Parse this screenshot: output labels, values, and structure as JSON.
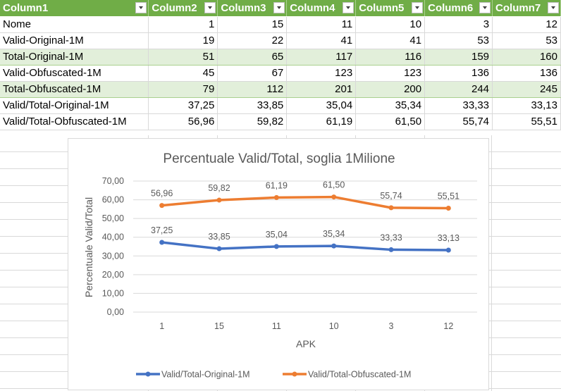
{
  "table": {
    "headers": [
      "Column1",
      "Column2",
      "Column3",
      "Column4",
      "Column5",
      "Column6",
      "Column7"
    ],
    "rows": [
      [
        "Nome",
        "1",
        "15",
        "11",
        "10",
        "3",
        "12"
      ],
      [
        "Valid-Original-1M",
        "19",
        "22",
        "41",
        "41",
        "53",
        "53"
      ],
      [
        "Total-Original-1M",
        "51",
        "65",
        "117",
        "116",
        "159",
        "160"
      ],
      [
        "Valid-Obfuscated-1M",
        "45",
        "67",
        "123",
        "123",
        "136",
        "136"
      ],
      [
        "Total-Obfuscated-1M",
        "79",
        "112",
        "201",
        "200",
        "244",
        "245"
      ],
      [
        "Valid/Total-Original-1M",
        "37,25",
        "33,85",
        "35,04",
        "35,34",
        "33,33",
        "33,13"
      ],
      [
        "Valid/Total-Obfuscated-1M",
        "56,96",
        "59,82",
        "61,19",
        "61,50",
        "55,74",
        "55,51"
      ]
    ]
  },
  "chart_data": {
    "type": "line",
    "title": "Percentuale Valid/Total, soglia 1Milione",
    "xlabel": "APK",
    "ylabel": "Percentuale Valid/Total",
    "categories": [
      "1",
      "15",
      "11",
      "10",
      "3",
      "12"
    ],
    "ylim": [
      0,
      70
    ],
    "yticks": [
      "0,00",
      "10,00",
      "20,00",
      "30,00",
      "40,00",
      "50,00",
      "60,00",
      "70,00"
    ],
    "grid": true,
    "legend_position": "bottom",
    "series": [
      {
        "name": "Valid/Total-Original-1M",
        "color": "#4472c4",
        "values": [
          37.25,
          33.85,
          35.04,
          35.34,
          33.33,
          33.13
        ],
        "labels": [
          "37,25",
          "33,85",
          "35,04",
          "35,34",
          "33,33",
          "33,13"
        ]
      },
      {
        "name": "Valid/Total-Obfuscated-1M",
        "color": "#ed7d31",
        "values": [
          56.96,
          59.82,
          61.19,
          61.5,
          55.74,
          55.51
        ],
        "labels": [
          "56,96",
          "59,82",
          "61,19",
          "61,50",
          "55,74",
          "55,51"
        ]
      }
    ]
  }
}
